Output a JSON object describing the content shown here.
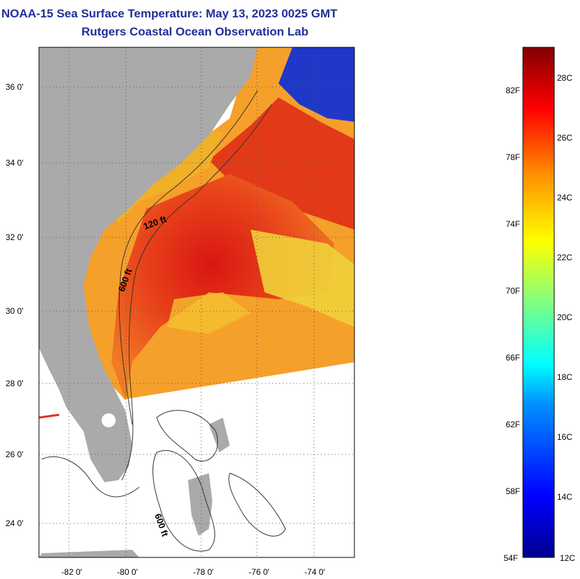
{
  "title": {
    "line1": "NOAA-15 Sea Surface Temperature:  May 13, 2023 0025 GMT",
    "line2": "Rutgers Coastal Ocean Observation Lab"
  },
  "map": {
    "lat_ticks": [
      "36 0'",
      "34 0'",
      "32 0'",
      "30 0'",
      "28 0'",
      "26 0'",
      "24 0'"
    ],
    "lon_ticks": [
      "-82 0'",
      "-80 0'",
      "-78 0'",
      "-76 0'",
      "-74 0'"
    ],
    "contour_labels": [
      "120 ft",
      "600 ft",
      "600 ft"
    ],
    "colors": {
      "land": "#aaaaaa",
      "ocean_warm": "#e8401a",
      "ocean_hot": "#d61510",
      "ocean_mid": "#f5a02a",
      "ocean_cool": "#f2e23a",
      "cold": "#1830c8"
    }
  },
  "colorbar": {
    "fahrenheit": [
      "82F",
      "78F",
      "74F",
      "70F",
      "66F",
      "62F",
      "58F",
      "54F"
    ],
    "celsius": [
      "28C",
      "26C",
      "24C",
      "22C",
      "20C",
      "18C",
      "16C",
      "14C",
      "12C"
    ]
  }
}
